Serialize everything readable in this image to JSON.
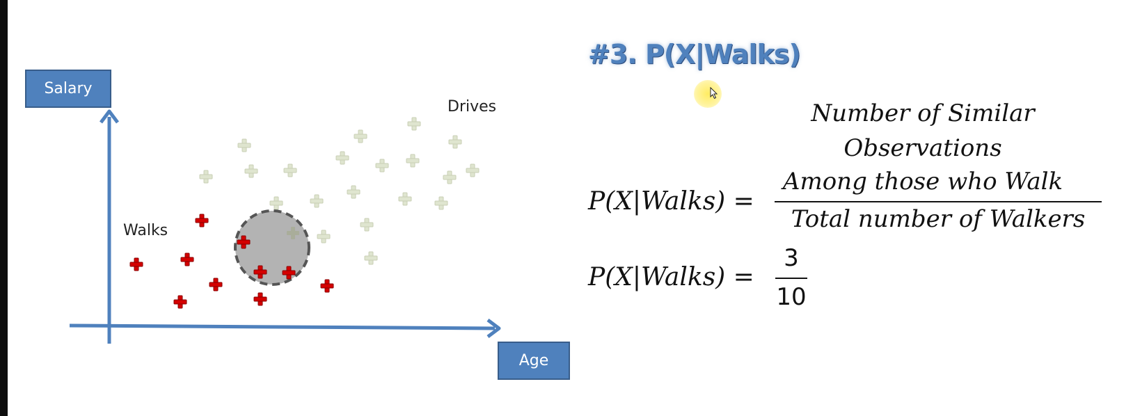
{
  "diagram": {
    "y_axis_label": "Salary",
    "x_axis_label": "Age",
    "walks_label": "Walks",
    "drives_label": "Drives",
    "colors": {
      "walks_marker": "#d40000",
      "drives_marker": "#e0e6d2",
      "axis": "#4f81bd",
      "circle_fill": "#b3b3b3",
      "circle_stroke": "#555555"
    }
  },
  "title": "#3. P(X|Walks)",
  "formula": {
    "lhs": "P(X|Walks) =",
    "numerator_line1": "Number of Similar",
    "numerator_line2": "Observations",
    "numerator_line3": "Among those who Walk",
    "denominator": "Total number of Walkers",
    "lhs2": "P(X|Walks) =",
    "result_numerator": "3",
    "result_denominator": "10"
  }
}
